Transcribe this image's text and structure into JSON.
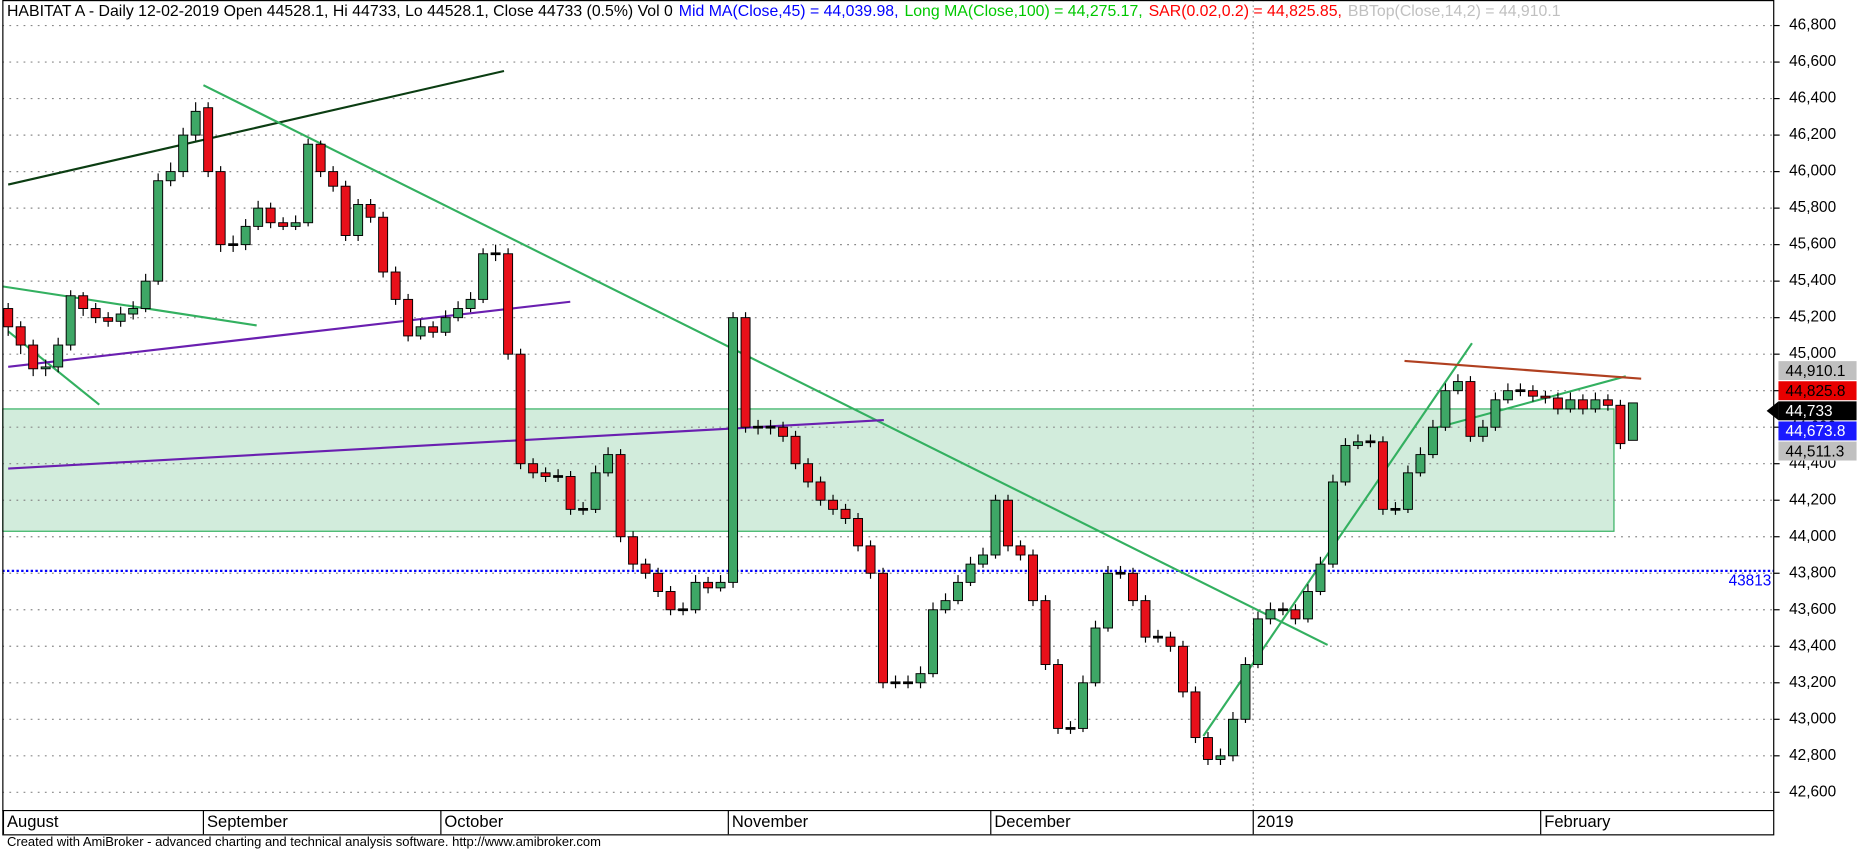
{
  "chart_data": {
    "type": "candlestick",
    "title_parts": [
      {
        "text": "HABITAT A - Daily 12-02-2019 Open 44528.1, Hi 44733, Lo 44528.1, Close 44733 (0.5%) Vol 0",
        "color": "#000000"
      },
      {
        "text": "Mid MA(Close,45) = 44,039.98,",
        "color": "#0000ff"
      },
      {
        "text": "Long MA(Close,100) = 44,275.17,",
        "color": "#00c800"
      },
      {
        "text": "SAR(0.02,0.2) = 44,825.85,",
        "color": "#ff0000"
      },
      {
        "text": "BBTop(Close,14,2) = 44,910.1",
        "color": "#c0c0c0"
      }
    ],
    "categories": [
      "August",
      null,
      null,
      null,
      null,
      null,
      null,
      null,
      null,
      null,
      null,
      null,
      null,
      null,
      null,
      null,
      "September",
      null,
      null,
      null,
      null,
      null,
      null,
      null,
      null,
      null,
      null,
      null,
      null,
      null,
      null,
      null,
      null,
      null,
      null,
      "October",
      null,
      null,
      null,
      null,
      null,
      null,
      null,
      null,
      null,
      null,
      null,
      null,
      null,
      null,
      null,
      null,
      null,
      null,
      null,
      null,
      null,
      null,
      "November",
      null,
      null,
      null,
      null,
      null,
      null,
      null,
      null,
      null,
      null,
      null,
      null,
      null,
      null,
      null,
      null,
      null,
      null,
      null,
      null,
      "December",
      null,
      null,
      null,
      null,
      null,
      null,
      null,
      null,
      null,
      null,
      null,
      null,
      null,
      null,
      null,
      null,
      null,
      null,
      null,
      null,
      "2019",
      null,
      null,
      null,
      null,
      null,
      null,
      null,
      null,
      null,
      null,
      null,
      null,
      null,
      null,
      null,
      null,
      null,
      null,
      null,
      null,
      null,
      null,
      "February",
      null,
      null,
      null,
      null,
      null,
      null,
      null
    ],
    "open": [
      45250,
      45150,
      45050,
      44920,
      44930,
      45050,
      45320,
      45250,
      45200,
      45180,
      45220,
      45250,
      45400,
      45950,
      46000,
      46200,
      46350,
      46000,
      45600,
      45600,
      45700,
      45800,
      45720,
      45700,
      45720,
      46150,
      46000,
      45920,
      45650,
      45820,
      45750,
      45450,
      45300,
      45100,
      45150,
      45120,
      45200,
      45250,
      45300,
      45550,
      45550,
      45000,
      44400,
      44350,
      44330,
      44330,
      44150,
      44150,
      44350,
      44450,
      44000,
      43850,
      43800,
      43700,
      43600,
      43600,
      43750,
      43720,
      43750,
      45200,
      44600,
      44600,
      44600,
      44550,
      44400,
      44300,
      44200,
      44150,
      44100,
      43950,
      43800,
      43200,
      43200,
      43200,
      43250,
      43600,
      43650,
      43750,
      43850,
      43900,
      44200,
      43950,
      43900,
      43650,
      43300,
      42950,
      42950,
      43200,
      43500,
      43800,
      43800,
      43650,
      43450,
      43450,
      43400,
      43150,
      42900,
      42780,
      42800,
      43000,
      43300,
      43550,
      43600,
      43600,
      43550,
      43700,
      43850,
      44300,
      44500,
      44520,
      44520,
      44150,
      44150,
      44350,
      44450,
      44600,
      44800,
      44850,
      44550,
      44600,
      44750,
      44800,
      44800,
      44770,
      44760,
      44700,
      44750,
      44700,
      44750,
      44720,
      44528.1
    ],
    "high": [
      45280,
      45180,
      45080,
      44970,
      45090,
      45350,
      45340,
      45280,
      45230,
      45260,
      45290,
      45440,
      45990,
      46050,
      46240,
      46380,
      46380,
      46030,
      45650,
      45740,
      45840,
      45830,
      45750,
      45760,
      46180,
      46170,
      46030,
      45950,
      45850,
      45850,
      45780,
      45480,
      45330,
      45190,
      45180,
      45240,
      45290,
      45340,
      45580,
      45600,
      45580,
      45030,
      44430,
      44380,
      44370,
      44360,
      44190,
      44390,
      44490,
      44480,
      44030,
      43880,
      43830,
      43730,
      43640,
      43790,
      43780,
      43790,
      45230,
      45230,
      44640,
      44640,
      44630,
      44580,
      44430,
      44330,
      44230,
      44180,
      44130,
      43980,
      43830,
      43240,
      43240,
      43290,
      43640,
      43690,
      43790,
      43890,
      43940,
      44230,
      44230,
      43980,
      43930,
      43680,
      43330,
      42990,
      43240,
      43540,
      43840,
      43840,
      43830,
      43680,
      43490,
      43480,
      43430,
      43180,
      42930,
      42840,
      43040,
      43340,
      43590,
      43640,
      43640,
      43630,
      43740,
      43890,
      44340,
      44540,
      44560,
      44560,
      44550,
      44190,
      44390,
      44490,
      44640,
      44840,
      44890,
      44880,
      44640,
      44790,
      44840,
      44840,
      44830,
      44800,
      44790,
      44790,
      44780,
      44790,
      44780,
      44750,
      44733
    ],
    "low": [
      45100,
      45000,
      44880,
      44880,
      44900,
      45020,
      45210,
      45170,
      45150,
      45150,
      45190,
      45230,
      45380,
      45920,
      45970,
      46170,
      45970,
      45560,
      45560,
      45570,
      45680,
      45690,
      45680,
      45680,
      45700,
      45970,
      45890,
      45620,
      45620,
      45720,
      45420,
      45270,
      45070,
      45080,
      45090,
      45100,
      45180,
      45230,
      45280,
      45510,
      44970,
      44370,
      44320,
      44300,
      44300,
      44120,
      44120,
      44130,
      44330,
      43970,
      43820,
      43770,
      43670,
      43570,
      43570,
      43580,
      43690,
      43700,
      43720,
      44570,
      44560,
      44560,
      44520,
      44370,
      44270,
      44170,
      44120,
      44070,
      43920,
      43770,
      43170,
      43170,
      43170,
      43170,
      43230,
      43580,
      43630,
      43730,
      43830,
      43880,
      43920,
      43870,
      43620,
      43270,
      42920,
      42920,
      42930,
      43180,
      43480,
      43770,
      43620,
      43420,
      43420,
      43370,
      43120,
      42870,
      42750,
      42750,
      42770,
      42980,
      43280,
      43520,
      43570,
      43520,
      43530,
      43680,
      43830,
      44280,
      44480,
      44490,
      44120,
      44120,
      44130,
      44330,
      44430,
      44580,
      44780,
      44520,
      44520,
      44580,
      44730,
      44770,
      44740,
      44730,
      44670,
      44680,
      44670,
      44680,
      44690,
      44480,
      44528.1
    ],
    "close": [
      45150,
      45050,
      44920,
      44930,
      45050,
      45320,
      45250,
      45200,
      45180,
      45220,
      45250,
      45400,
      45950,
      46000,
      46200,
      46330,
      46000,
      45600,
      45600,
      45700,
      45800,
      45720,
      45700,
      45720,
      46150,
      46000,
      45920,
      45650,
      45820,
      45750,
      45450,
      45300,
      45100,
      45150,
      45120,
      45200,
      45250,
      45300,
      45550,
      45550,
      45000,
      44400,
      44350,
      44330,
      44330,
      44150,
      44150,
      44350,
      44450,
      44000,
      43850,
      43800,
      43700,
      43600,
      43600,
      43750,
      43720,
      43750,
      45200,
      44600,
      44600,
      44600,
      44550,
      44400,
      44300,
      44200,
      44150,
      44100,
      43950,
      43800,
      43200,
      43200,
      43200,
      43250,
      43600,
      43650,
      43750,
      43850,
      43900,
      44200,
      43950,
      43900,
      43650,
      43300,
      42950,
      42950,
      43200,
      43500,
      43800,
      43800,
      43650,
      43450,
      43450,
      43400,
      43150,
      42900,
      42780,
      42800,
      43000,
      43300,
      43550,
      43600,
      43600,
      43550,
      43700,
      43850,
      44300,
      44500,
      44520,
      44520,
      44150,
      44150,
      44350,
      44450,
      44600,
      44800,
      44850,
      44550,
      44600,
      44750,
      44800,
      44800,
      44770,
      44760,
      44700,
      44750,
      44700,
      44750,
      44720,
      44510,
      44733
    ],
    "up_color": "#3ea766",
    "down_color": "#e8101a",
    "ylim": [
      42500,
      46940
    ],
    "yticks": [
      {
        "value": 42600,
        "label": "42,600"
      },
      {
        "value": 42800,
        "label": "42,800"
      },
      {
        "value": 43000,
        "label": "43,000"
      },
      {
        "value": 43200,
        "label": "43,200"
      },
      {
        "value": 43400,
        "label": "43,400"
      },
      {
        "value": 43600,
        "label": "43,600"
      },
      {
        "value": 43800,
        "label": "43,800"
      },
      {
        "value": 44000,
        "label": "44,000"
      },
      {
        "value": 44200,
        "label": "44,200"
      },
      {
        "value": 44400,
        "label": "44,400"
      },
      {
        "value": 44600,
        "label": "44,600"
      },
      {
        "value": 44800,
        "label": "44,800"
      },
      {
        "value": 45000,
        "label": "45,000"
      },
      {
        "value": 45200,
        "label": "45,200"
      },
      {
        "value": 45400,
        "label": "45,400"
      },
      {
        "value": 45600,
        "label": "45,600"
      },
      {
        "value": 45800,
        "label": "45,800"
      },
      {
        "value": 46000,
        "label": "46,000"
      },
      {
        "value": 46200,
        "label": "46,200"
      },
      {
        "value": 46400,
        "label": "46,400"
      },
      {
        "value": 46600,
        "label": "46,600"
      },
      {
        "value": 46800,
        "label": "46,800"
      }
    ],
    "grid": true,
    "zone": {
      "low": 44030,
      "high": 44700,
      "color": "#d2ecdc",
      "edge": "#33b060"
    },
    "level": {
      "value": 43813,
      "label": "43813",
      "color": "#0000ff"
    },
    "markers": [
      {
        "value": 44910.1,
        "label": "44,910.1",
        "color": "#c0c0c0",
        "text_color": "#000000"
      },
      {
        "value": 44825.8,
        "label": "44,825.8",
        "color": "#e80000",
        "text_color": "#000000"
      },
      {
        "value": 44733,
        "label": "44,733",
        "color": "#000000",
        "text_color": "#ffffff"
      },
      {
        "value": 44673.8,
        "label": "44,673.8",
        "color": "#1a1aff",
        "text_color": "#ffffff"
      },
      {
        "value": 44511.3,
        "label": "44,511.3",
        "color": "#c0c0c0",
        "text_color": "#000000"
      }
    ],
    "footer": "Created with AmiBroker - advanced charting and technical analysis software. http://www.amibroker.com"
  }
}
